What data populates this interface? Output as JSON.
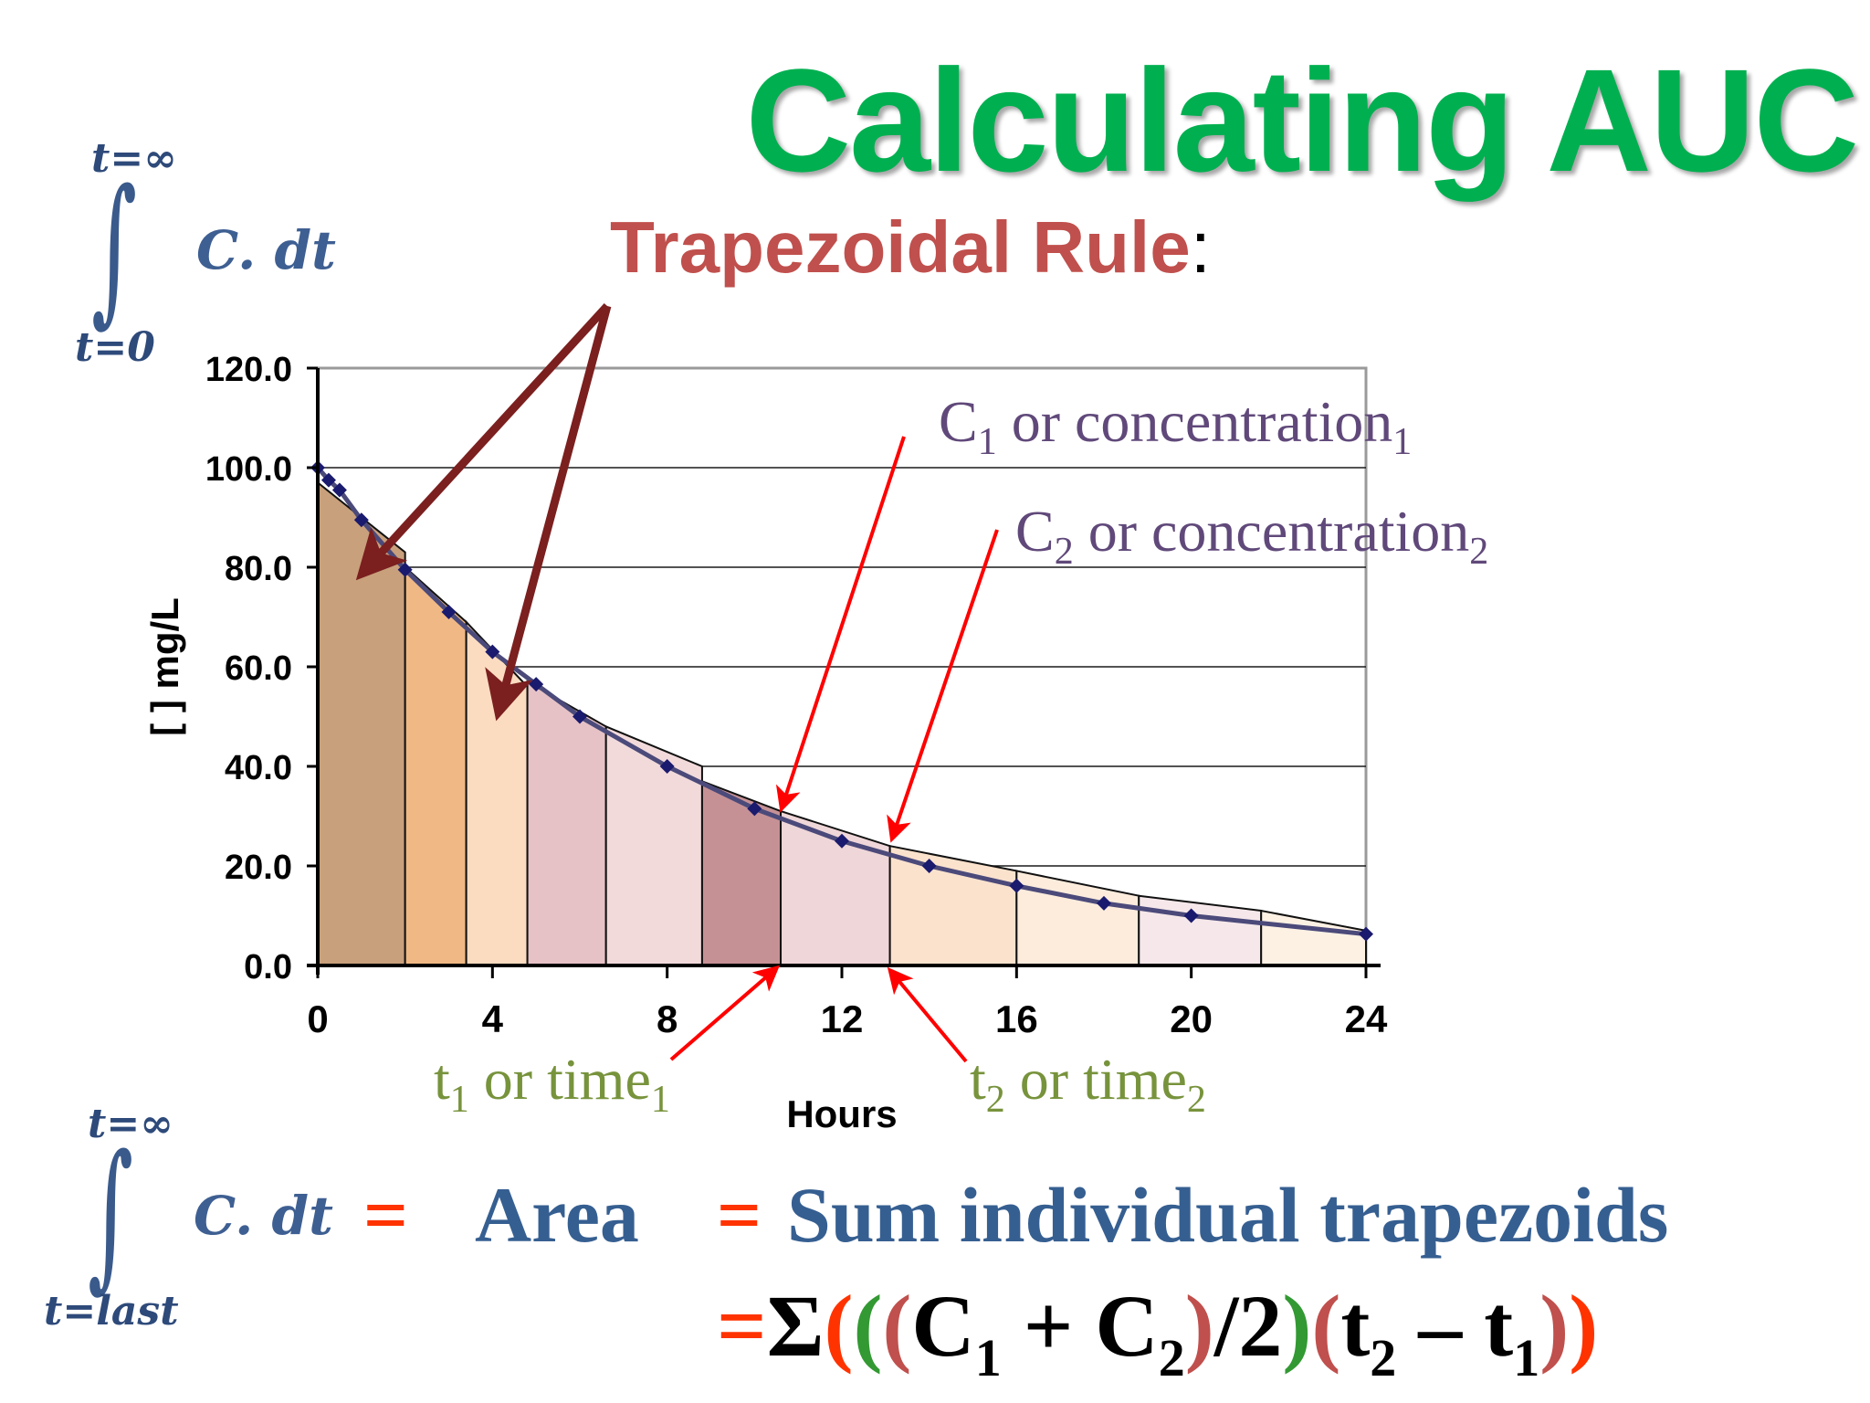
{
  "title": "Calculating AUC",
  "subtitle": "Trapezoidal Rule",
  "subtitle_colon": ":",
  "integral_top": {
    "sign": "∫",
    "upper": "t=∞",
    "lower": "t=0",
    "integrand": "C. dt"
  },
  "integral_bottom": {
    "sign": "∫",
    "upper": "t=∞",
    "lower": "t=last",
    "integrand": "C. dt"
  },
  "annotations": {
    "c1_main": "C",
    "c1_sub": "1",
    "c1_text": " or concentration",
    "c1_text_sub": "1",
    "c2_main": "C",
    "c2_sub": "2",
    "c2_text": " or concentration",
    "c2_text_sub": "2",
    "t1_main": "t",
    "t1_sub": "1",
    "t1_text": " or time",
    "t1_text_sub": "1",
    "t2_main": "t",
    "t2_sub": "2",
    "t2_text": " or time",
    "t2_text_sub": "2"
  },
  "equation": {
    "eq1": "=",
    "area": "Area",
    "eq2": "=",
    "sum_text": "Sum individual trapezoids",
    "f_eq": "=",
    "f_sigma": "Σ",
    "f_p1": "(",
    "f_p2": "(",
    "f_p3": "(",
    "f_c1": "C",
    "f_c1_sub": "1",
    "f_plus": " + ",
    "f_c2": "C",
    "f_c2_sub": "2",
    "f_p3c": ")",
    "f_div": "/2",
    "f_p2c": ")",
    "f_p4": "(",
    "f_t2": "t",
    "f_t2_sub": "2",
    "f_minus": " – ",
    "f_t1": "t",
    "f_t1_sub": "1",
    "f_p4c": ")",
    "f_p1c": ")"
  },
  "colors": {
    "title": "#00b050",
    "subtitle": "#c0504d",
    "annotation_c": "#60497a",
    "annotation_t": "#77933c",
    "equation_blue": "#365f91",
    "equation_red": "#ff3300",
    "formula_red": "#ff3300",
    "formula_green": "#339933",
    "formula_brown": "#c0504d",
    "arrow_dark": "#7b1f1f",
    "arrow_red": "#ff0000",
    "curve": "#4b4a7a",
    "marker": "#1a1a6e"
  },
  "chart_data": {
    "type": "area",
    "xlabel": "Hours",
    "ylabel": "[ ] mg/L",
    "xlim": [
      0,
      24
    ],
    "ylim": [
      0,
      120
    ],
    "x_ticks": [
      "0",
      "4",
      "8",
      "12",
      "16",
      "20",
      "24"
    ],
    "y_ticks": [
      "0.0",
      "20.0",
      "40.0",
      "60.0",
      "80.0",
      "100.0",
      "120.0"
    ],
    "grid": "horizontal",
    "series": [
      {
        "values": [
          {
            "x": 0,
            "y": 100.0
          },
          {
            "x": 0.25,
            "y": 97.5
          },
          {
            "x": 0.5,
            "y": 95.5
          },
          {
            "x": 1,
            "y": 89.5
          },
          {
            "x": 2,
            "y": 79.5
          },
          {
            "x": 3,
            "y": 71.0
          },
          {
            "x": 4,
            "y": 63.0
          },
          {
            "x": 5,
            "y": 56.5
          },
          {
            "x": 6,
            "y": 50.0
          },
          {
            "x": 8,
            "y": 40.0
          },
          {
            "x": 10,
            "y": 31.5
          },
          {
            "x": 12,
            "y": 25.0
          },
          {
            "x": 14,
            "y": 20.0
          },
          {
            "x": 16,
            "y": 16.0
          },
          {
            "x": 18,
            "y": 12.5
          },
          {
            "x": 20,
            "y": 10.0
          },
          {
            "x": 24,
            "y": 6.3
          }
        ]
      }
    ],
    "trapezoids": [
      {
        "x1": 0,
        "x2": 2,
        "y1": 97,
        "y2": 83,
        "color": "#c8a07c"
      },
      {
        "x1": 2,
        "x2": 3.4,
        "y1": 80,
        "y2": 69,
        "color": "#f0b884"
      },
      {
        "x1": 3.4,
        "x2": 4.8,
        "y1": 69,
        "y2": 56,
        "color": "#fbdcc0"
      },
      {
        "x1": 4.8,
        "x2": 6.6,
        "y1": 57,
        "y2": 48,
        "color": "#e6c2c6"
      },
      {
        "x1": 6.6,
        "x2": 8.8,
        "y1": 48,
        "y2": 40,
        "color": "#f2dadb"
      },
      {
        "x1": 8.8,
        "x2": 10.6,
        "y1": 37,
        "y2": 31,
        "color": "#c69195"
      },
      {
        "x1": 10.6,
        "x2": 13.1,
        "y1": 31,
        "y2": 24,
        "color": "#efd6d8"
      },
      {
        "x1": 13.1,
        "x2": 16,
        "y1": 24,
        "y2": 19,
        "color": "#fbe2cd"
      },
      {
        "x1": 16,
        "x2": 18.8,
        "y1": 19,
        "y2": 14,
        "color": "#fdecdc"
      },
      {
        "x1": 18.8,
        "x2": 21.6,
        "y1": 14,
        "y2": 11,
        "color": "#f6e8ea"
      },
      {
        "x1": 21.6,
        "x2": 24,
        "y1": 11,
        "y2": 7,
        "color": "#fdf1e4"
      }
    ]
  }
}
